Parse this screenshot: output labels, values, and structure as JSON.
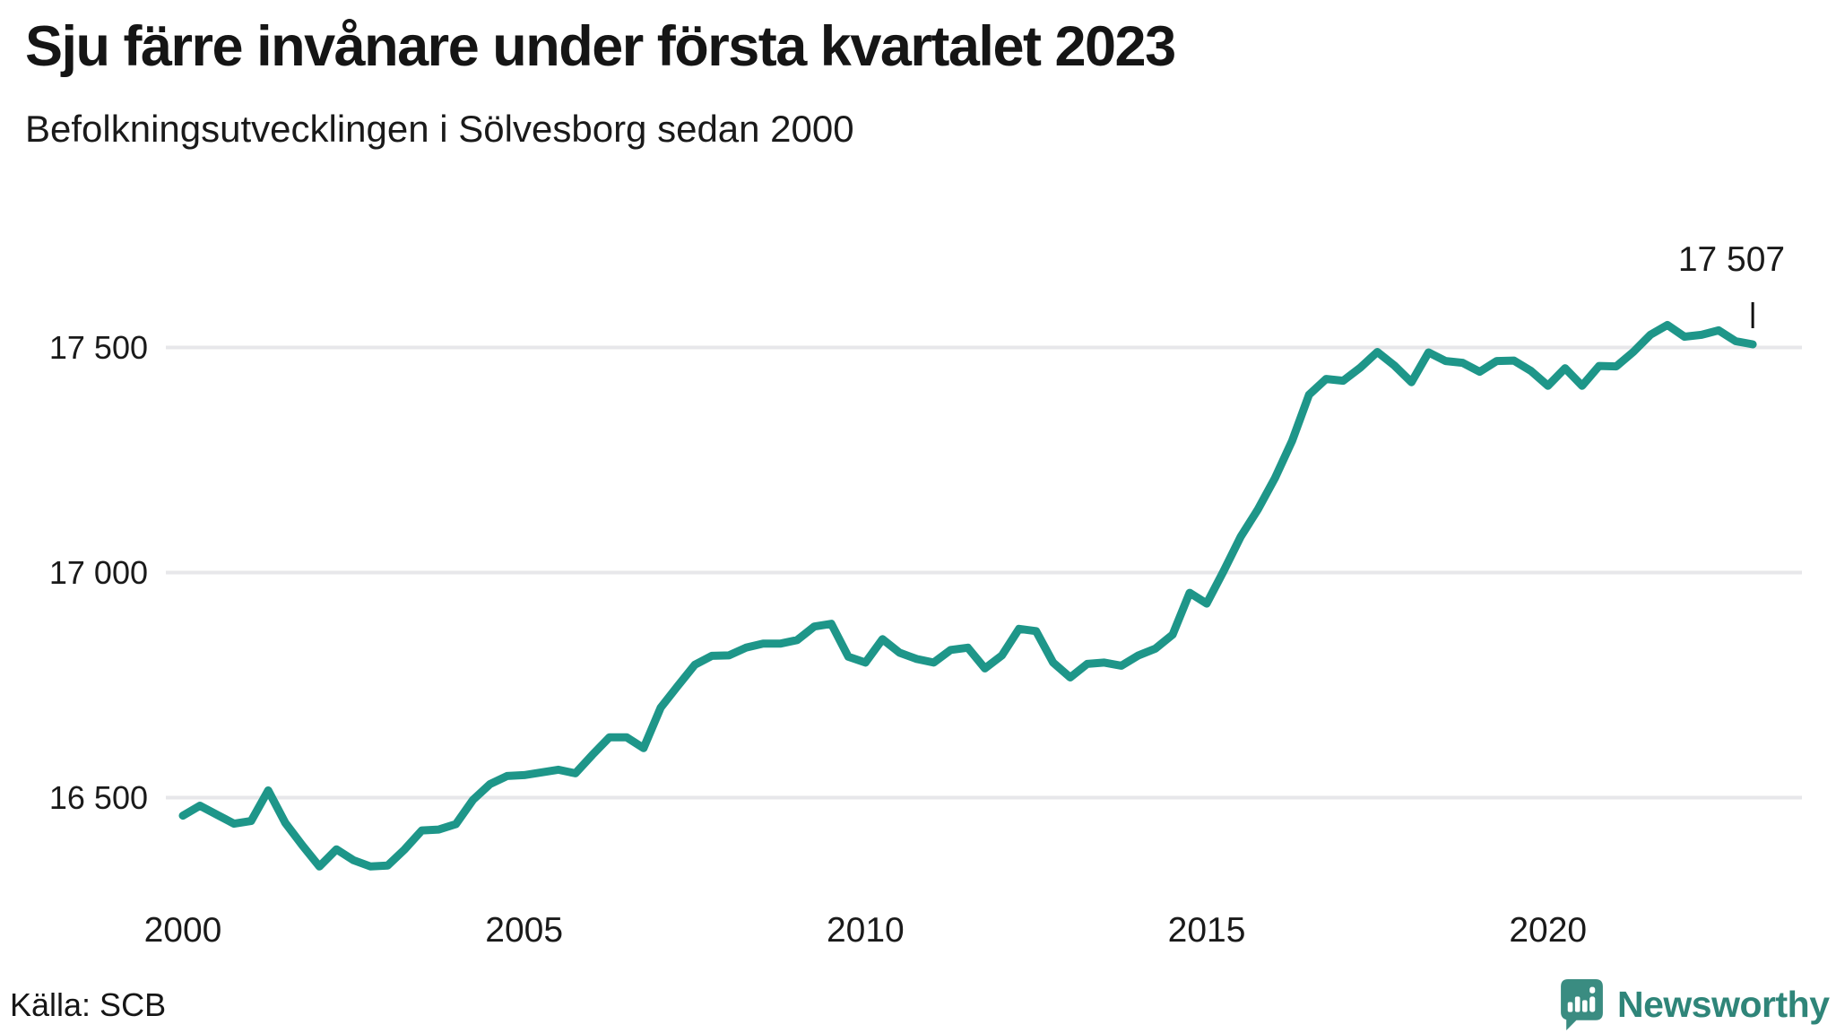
{
  "header": {
    "title": "Sju färre invånare under första kvartalet 2023",
    "subtitle": "Befolkningsutvecklingen i Sölvesborg sedan 2000"
  },
  "chart_data": {
    "type": "line",
    "title": "Sju färre invånare under första kvartalet 2023",
    "subtitle": "Befolkningsutvecklingen i Sölvesborg sedan 2000",
    "unit": "invånare",
    "frequency": "quarterly",
    "x_start": "2000-Q1",
    "x_end": "2023-Q1",
    "series": [
      {
        "name": "Befolkning i Sölvesborg",
        "values": [
          16460,
          16482,
          16462,
          16442,
          16448,
          16516,
          16444,
          16394,
          16347,
          16385,
          16361,
          16347,
          16349,
          16385,
          16427,
          16429,
          16441,
          16495,
          16530,
          16548,
          16550,
          16556,
          16562,
          16554,
          16595,
          16634,
          16634,
          16610,
          16700,
          16748,
          16795,
          16815,
          16816,
          16833,
          16842,
          16842,
          16850,
          16880,
          16886,
          16813,
          16800,
          16852,
          16822,
          16808,
          16800,
          16828,
          16833,
          16787,
          16816,
          16875,
          16870,
          16800,
          16767,
          16797,
          16800,
          16793,
          16816,
          16831,
          16862,
          16955,
          16931,
          17004,
          17080,
          17140,
          17210,
          17292,
          17395,
          17430,
          17426,
          17455,
          17490,
          17460,
          17423,
          17489,
          17470,
          17466,
          17446,
          17470,
          17471,
          17448,
          17415,
          17454,
          17415,
          17459,
          17458,
          17490,
          17528,
          17550,
          17524,
          17528,
          17538,
          17514,
          17507
        ]
      }
    ],
    "yticks": {
      "values": [
        17500,
        17000,
        16500
      ],
      "labels": [
        "17 500",
        "17 000",
        "16 500"
      ]
    },
    "xticks": {
      "values": [
        2000,
        2005,
        2010,
        2015,
        2020
      ],
      "labels": [
        "2000",
        "2005",
        "2010",
        "2015",
        "2020"
      ]
    },
    "ylim": [
      16280,
      17620
    ],
    "grid": "horizontal-only",
    "legend": "none",
    "end_annotation": {
      "label": "17 507",
      "value": 17507
    }
  },
  "footer": {
    "source_label": "Källa: SCB",
    "brand_name": "Newsworthy"
  },
  "colors": {
    "line": "#1e9689",
    "grid": "#e7e7ea",
    "text": "#1a1a1a",
    "annotation": "#111111",
    "brand_teal": "#2f8579",
    "logo_bg": "#3a8c81",
    "background": "#ffffff"
  },
  "icons": {
    "logo": "newsworthy-speech-bubble-bar-chart-icon"
  }
}
